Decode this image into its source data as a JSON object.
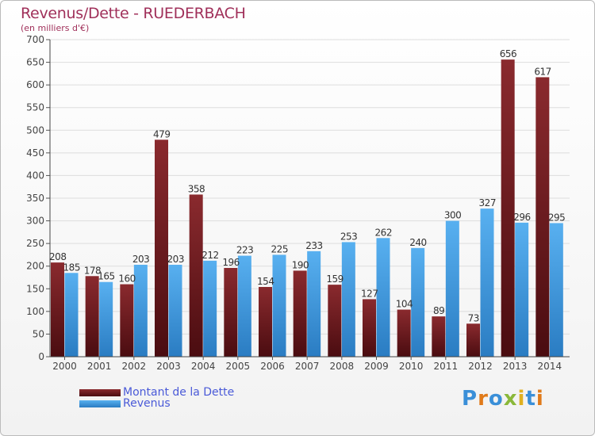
{
  "header": {
    "title": "Revenus/Dette - RUEDERBACH",
    "subtitle": "(en milliers d'€)"
  },
  "legend": {
    "items": [
      {
        "label": "Montant de la Dette",
        "color": "#7a1e22"
      },
      {
        "label": "Revenus",
        "color": "#4a9ee0"
      }
    ]
  },
  "logo": {
    "text": "Proxiti"
  },
  "chart_data": {
    "type": "bar",
    "title": "Revenus/Dette - RUEDERBACH",
    "subtitle": "(en milliers d'€)",
    "categories": [
      "2000",
      "2001",
      "2002",
      "2003",
      "2004",
      "2005",
      "2006",
      "2007",
      "2008",
      "2009",
      "2010",
      "2011",
      "2012",
      "2013",
      "2014"
    ],
    "series": [
      {
        "name": "Montant de la Dette",
        "color": "#7a1e22",
        "values": [
          208,
          178,
          160,
          479,
          358,
          196,
          154,
          190,
          159,
          127,
          104,
          89,
          73,
          656,
          617
        ]
      },
      {
        "name": "Revenus",
        "color": "#4a9ee0",
        "values": [
          185,
          165,
          203,
          203,
          212,
          223,
          225,
          233,
          253,
          262,
          240,
          300,
          327,
          296,
          295
        ]
      }
    ],
    "ylim": [
      0,
      700
    ],
    "yticks": [
      0,
      50,
      100,
      150,
      200,
      250,
      300,
      350,
      400,
      450,
      500,
      550,
      600,
      650,
      700
    ],
    "grid": true,
    "legend_position": "bottom-left"
  }
}
